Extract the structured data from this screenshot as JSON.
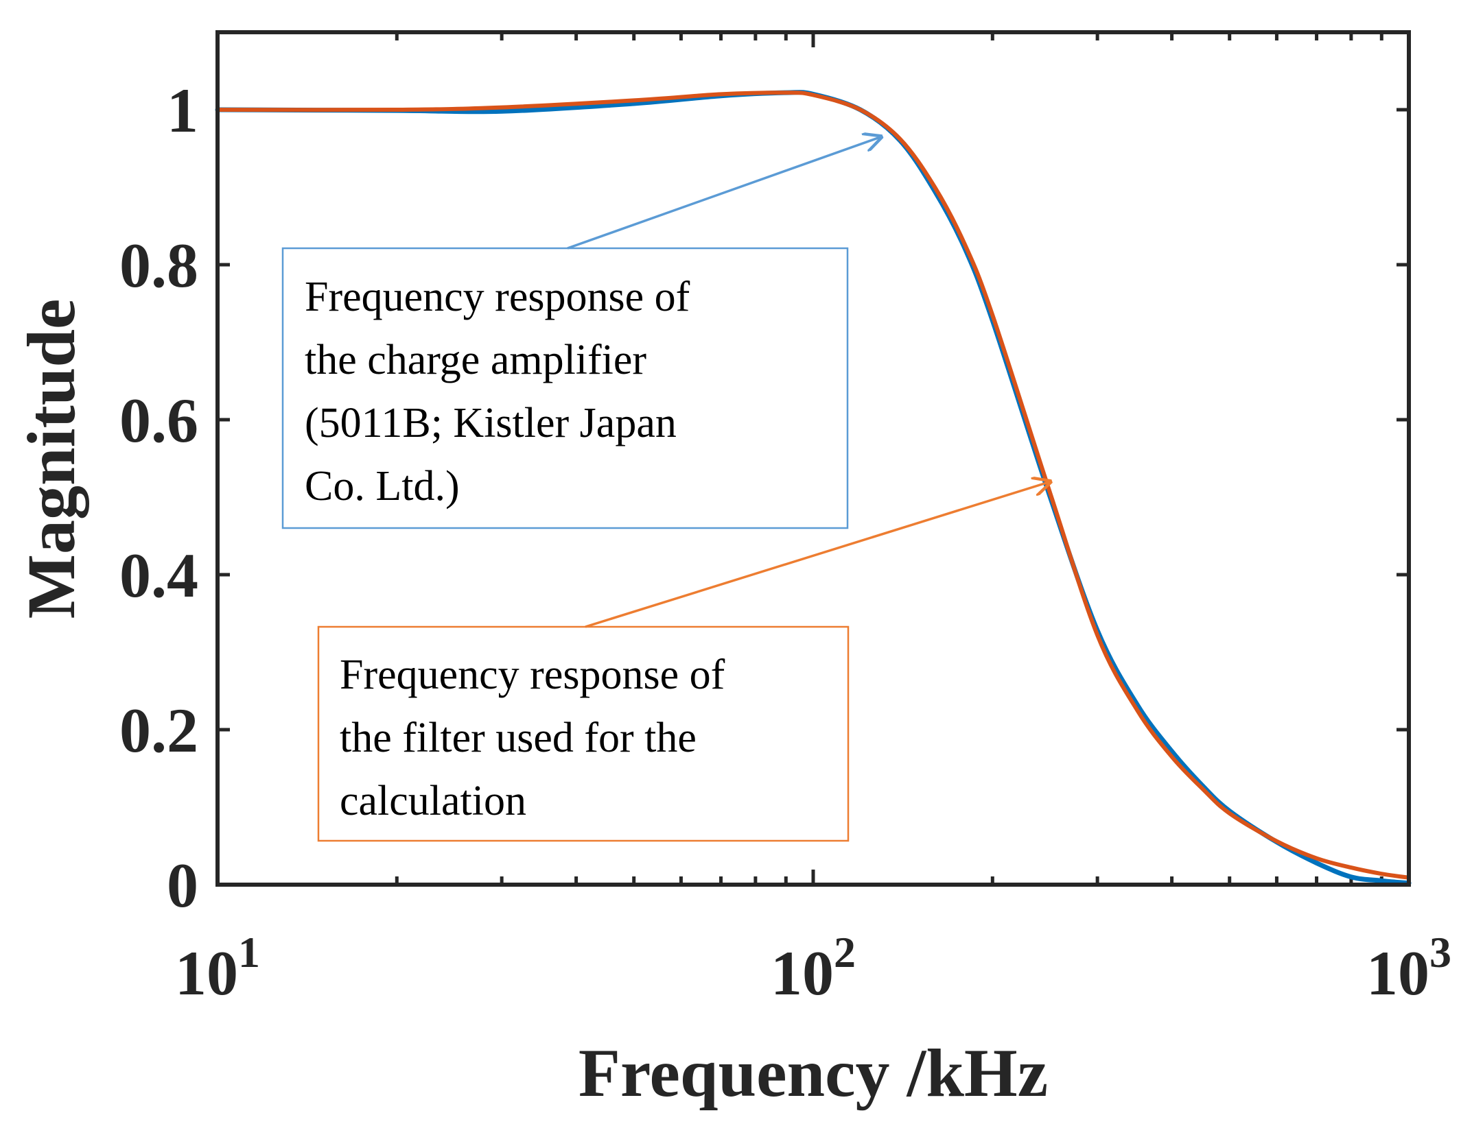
{
  "chart_data": {
    "type": "line",
    "xlabel": "Frequency /kHz",
    "ylabel": "Magnitude",
    "xscale": "log",
    "xlim": [
      10,
      1000
    ],
    "ylim": [
      0,
      1.1
    ],
    "grid": false,
    "yticks": [
      0,
      0.2,
      0.4,
      0.6,
      0.8,
      1
    ],
    "ytick_labels": [
      "0",
      "0.2",
      "0.4",
      "0.6",
      "0.8",
      "1"
    ],
    "xticks": [
      {
        "value": 10,
        "base": "10",
        "exp": "1"
      },
      {
        "value": 100,
        "base": "10",
        "exp": "2"
      },
      {
        "value": 1000,
        "base": "10",
        "exp": "3"
      }
    ],
    "series": [
      {
        "color": "#0072BD",
        "x": [
          10,
          20,
          30,
          50,
          70,
          90,
          100,
          120,
          140,
          160,
          180,
          200,
          250,
          300,
          350,
          400,
          450,
          500,
          600,
          700,
          800,
          900,
          1000
        ],
        "y": [
          1.0,
          0.999,
          0.998,
          1.008,
          1.018,
          1.022,
          1.02,
          1.0,
          0.96,
          0.895,
          0.82,
          0.728,
          0.5,
          0.328,
          0.232,
          0.172,
          0.128,
          0.095,
          0.055,
          0.028,
          0.01,
          0.005,
          0.002
        ]
      },
      {
        "color": "#D95319",
        "x": [
          10,
          20,
          30,
          50,
          70,
          90,
          100,
          120,
          140,
          160,
          180,
          200,
          250,
          300,
          350,
          400,
          450,
          500,
          600,
          700,
          800,
          900,
          1000
        ],
        "y": [
          1.0,
          1.0,
          1.003,
          1.012,
          1.02,
          1.022,
          1.019,
          1.0,
          0.962,
          0.9,
          0.825,
          0.735,
          0.505,
          0.322,
          0.225,
          0.165,
          0.124,
          0.092,
          0.056,
          0.034,
          0.022,
          0.014,
          0.009
        ]
      }
    ],
    "annotations": [
      {
        "lines": [
          "Frequency response of",
          "the charge amplifier",
          "(5011B; Kistler Japan",
          "Co. Ltd.)"
        ],
        "color": "#5B9BD5",
        "target": {
          "x": 130,
          "y": 0.965
        }
      },
      {
        "lines": [
          "Frequency response of",
          "the filter used for the",
          "calculation"
        ],
        "color": "#ED7D31",
        "target": {
          "x": 250,
          "y": 0.52
        }
      }
    ]
  }
}
